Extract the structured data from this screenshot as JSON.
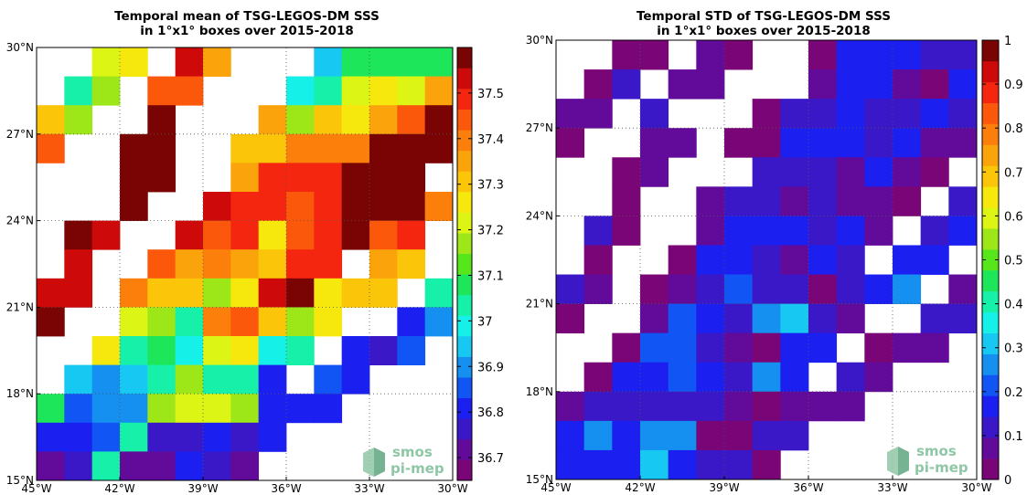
{
  "chart_data": [
    {
      "type": "heatmap",
      "title": "Temporal mean of TSG-LEGOS-DM SSS",
      "subtitle": "in 1°x1° boxes over 2015-2018",
      "xlabel": "",
      "ylabel": "",
      "xlim": [
        -45,
        -30
      ],
      "ylim": [
        15,
        30
      ],
      "xticks": [
        -45,
        -42,
        -39,
        -36,
        -33,
        -30
      ],
      "xtick_labels": [
        "45°W",
        "42°W",
        "39°W",
        "36°W",
        "33°W",
        "30°W"
      ],
      "yticks": [
        15,
        18,
        21,
        24,
        27,
        30
      ],
      "ytick_labels": [
        "15°N",
        "18°N",
        "21°N",
        "24°N",
        "27°N",
        "30°N"
      ],
      "grid": true,
      "colorbar": {
        "min": 36.65,
        "max": 37.6,
        "ticks": [
          36.7,
          36.8,
          36.9,
          37,
          37.1,
          37.2,
          37.3,
          37.4,
          37.5
        ],
        "tick_labels": [
          "36.7",
          "36.8",
          "36.9",
          "37",
          "37.1",
          "37.2",
          "37.3",
          "37.4",
          "37.5"
        ]
      },
      "colormap": [
        "#7a0577",
        "#620a9a",
        "#3a18c8",
        "#1b1ff0",
        "#1155f5",
        "#1590f0",
        "#16c8f2",
        "#15f0e8",
        "#17f0a8",
        "#1ee65a",
        "#57e61a",
        "#9de618",
        "#dcf515",
        "#f6e80c",
        "#fbc50a",
        "#fba30a",
        "#fb7f0a",
        "#fb580c",
        "#f4260f",
        "#ce0909",
        "#7a0303"
      ],
      "logo": {
        "line1": "smos",
        "line2": "pi-mep"
      },
      "rows": [
        {
          "lat": 29.5,
          "v": [
            null,
            null,
            37.2,
            37.25,
            null,
            37.55,
            37.35,
            null,
            null,
            null,
            36.95,
            37.1,
            37.1,
            37.1,
            37.1
          ]
        },
        {
          "lat": 28.5,
          "v": [
            null,
            37.05,
            37.15,
            null,
            37.45,
            37.45,
            null,
            null,
            null,
            37.0,
            37.05,
            37.2,
            37.25,
            37.2,
            37.35
          ]
        },
        {
          "lat": 27.5,
          "v": [
            37.3,
            37.15,
            null,
            null,
            37.6,
            null,
            null,
            null,
            37.35,
            37.15,
            37.3,
            37.25,
            37.35,
            37.45,
            37.6
          ]
        },
        {
          "lat": 26.5,
          "v": [
            37.45,
            null,
            null,
            37.6,
            37.6,
            null,
            null,
            37.3,
            37.3,
            37.4,
            37.4,
            37.4,
            37.6,
            37.6,
            37.6
          ]
        },
        {
          "lat": 25.5,
          "v": [
            null,
            null,
            null,
            37.6,
            37.6,
            null,
            null,
            37.35,
            37.5,
            37.5,
            37.5,
            37.6,
            37.6,
            37.6,
            null
          ]
        },
        {
          "lat": 24.5,
          "v": [
            null,
            null,
            null,
            37.6,
            null,
            null,
            37.55,
            37.5,
            37.5,
            37.45,
            37.5,
            37.6,
            37.6,
            37.6,
            37.4
          ]
        },
        {
          "lat": 23.5,
          "v": [
            null,
            37.6,
            37.55,
            null,
            null,
            37.55,
            37.45,
            37.5,
            37.25,
            37.45,
            37.5,
            37.6,
            37.45,
            37.5,
            null
          ]
        },
        {
          "lat": 22.5,
          "v": [
            null,
            37.55,
            null,
            null,
            37.45,
            37.35,
            37.4,
            37.35,
            37.3,
            37.5,
            37.5,
            null,
            37.35,
            37.3,
            null
          ]
        },
        {
          "lat": 21.5,
          "v": [
            37.55,
            37.55,
            null,
            37.4,
            37.3,
            37.3,
            37.15,
            37.25,
            37.55,
            37.6,
            37.25,
            37.3,
            37.3,
            null,
            37.05
          ]
        },
        {
          "lat": 20.5,
          "v": [
            37.6,
            null,
            null,
            37.2,
            37.15,
            37.05,
            37.4,
            37.45,
            37.3,
            37.15,
            37.25,
            null,
            null,
            36.8,
            36.9
          ]
        },
        {
          "lat": 19.5,
          "v": [
            null,
            null,
            37.25,
            37.05,
            37.1,
            37.0,
            37.2,
            37.25,
            37.0,
            37.05,
            null,
            36.8,
            36.75,
            36.85,
            null
          ]
        },
        {
          "lat": 18.5,
          "v": [
            null,
            36.95,
            36.9,
            36.95,
            37.05,
            37.15,
            37.05,
            37.05,
            36.8,
            null,
            36.85,
            36.8,
            null,
            null,
            null
          ]
        },
        {
          "lat": 17.5,
          "v": [
            37.1,
            36.85,
            36.9,
            36.9,
            37.15,
            37.2,
            37.2,
            37.15,
            36.8,
            36.8,
            36.8,
            null,
            null,
            null,
            null
          ]
        },
        {
          "lat": 16.5,
          "v": [
            36.8,
            36.8,
            36.85,
            37.05,
            36.75,
            36.75,
            36.8,
            36.75,
            36.8,
            null,
            null,
            null,
            null,
            null,
            null
          ]
        },
        {
          "lat": 15.5,
          "v": [
            36.7,
            36.75,
            37.05,
            36.7,
            36.7,
            36.8,
            36.75,
            36.7,
            null,
            null,
            null,
            null,
            null,
            null,
            null
          ]
        }
      ]
    },
    {
      "type": "heatmap",
      "title": "Temporal STD of TSG-LEGOS-DM SSS",
      "subtitle": "in 1°x1° boxes over 2015-2018",
      "xlabel": "",
      "ylabel": "",
      "xlim": [
        -45,
        -30
      ],
      "ylim": [
        15,
        30
      ],
      "xticks": [
        -45,
        -42,
        -39,
        -36,
        -33,
        -30
      ],
      "xtick_labels": [
        "45°W",
        "42°W",
        "39°W",
        "36°W",
        "33°W",
        "30°W"
      ],
      "yticks": [
        15,
        18,
        21,
        24,
        27,
        30
      ],
      "ytick_labels": [
        "15°N",
        "18°N",
        "21°N",
        "24°N",
        "27°N",
        "30°N"
      ],
      "grid": true,
      "colorbar": {
        "min": 0,
        "max": 1,
        "ticks": [
          0,
          0.1,
          0.2,
          0.3,
          0.4,
          0.5,
          0.6,
          0.7,
          0.8,
          0.9,
          1
        ],
        "tick_labels": [
          "0",
          "0.1",
          "0.2",
          "0.3",
          "0.4",
          "0.5",
          "0.6",
          "0.7",
          "0.8",
          "0.9",
          "1"
        ]
      },
      "colormap": [
        "#7a0577",
        "#620a9a",
        "#3a18c8",
        "#1b1ff0",
        "#1155f5",
        "#1590f0",
        "#16c8f2",
        "#15f0e8",
        "#17f0a8",
        "#1ee65a",
        "#57e61a",
        "#9de618",
        "#dcf515",
        "#f6e80c",
        "#fbc50a",
        "#fba30a",
        "#fb7f0a",
        "#fb580c",
        "#f4260f",
        "#ce0909",
        "#7a0303"
      ],
      "logo": {
        "line1": "smos",
        "line2": "pi-mep"
      },
      "rows": [
        {
          "lat": 29.5,
          "v": [
            null,
            null,
            0.03,
            0.03,
            null,
            0.08,
            0.04,
            null,
            null,
            0.03,
            0.15,
            0.15,
            0.17,
            0.12,
            0.1
          ]
        },
        {
          "lat": 28.5,
          "v": [
            null,
            0.03,
            0.1,
            null,
            0.05,
            0.05,
            null,
            null,
            null,
            0.08,
            0.16,
            0.16,
            0.08,
            0.04,
            0.16
          ]
        },
        {
          "lat": 27.5,
          "v": [
            0.08,
            0.08,
            null,
            0.13,
            null,
            null,
            null,
            0.03,
            0.1,
            0.12,
            0.15,
            0.1,
            0.1,
            0.17,
            0.1
          ]
        },
        {
          "lat": 26.5,
          "v": [
            0.03,
            null,
            null,
            0.05,
            0.05,
            null,
            0.04,
            0.04,
            0.16,
            0.16,
            0.16,
            0.12,
            0.16,
            0.08,
            0.08
          ]
        },
        {
          "lat": 25.5,
          "v": [
            null,
            null,
            0.04,
            0.09,
            null,
            null,
            null,
            0.1,
            0.13,
            0.13,
            0.05,
            0.17,
            0.08,
            0.03,
            null
          ]
        },
        {
          "lat": 24.5,
          "v": [
            null,
            null,
            0.03,
            null,
            null,
            0.08,
            0.12,
            0.12,
            0.07,
            0.1,
            0.08,
            0.05,
            0.03,
            null,
            0.12
          ]
        },
        {
          "lat": 23.5,
          "v": [
            null,
            0.1,
            0.03,
            null,
            null,
            0.05,
            0.16,
            0.16,
            0.16,
            0.12,
            0.16,
            0.05,
            null,
            0.1,
            0.16
          ]
        },
        {
          "lat": 22.5,
          "v": [
            null,
            0.03,
            null,
            null,
            0.03,
            0.16,
            0.16,
            0.1,
            0.05,
            0.16,
            0.12,
            null,
            0.16,
            0.16,
            null
          ]
        },
        {
          "lat": 21.5,
          "v": [
            0.13,
            0.05,
            null,
            0.04,
            0.08,
            0.13,
            0.2,
            0.12,
            0.12,
            0.03,
            0.1,
            0.16,
            0.25,
            null,
            0.08
          ]
        },
        {
          "lat": 20.5,
          "v": [
            0.04,
            null,
            null,
            0.07,
            0.2,
            0.17,
            0.12,
            0.25,
            0.33,
            0.12,
            0.09,
            null,
            null,
            0.12,
            0.12
          ]
        },
        {
          "lat": 19.5,
          "v": [
            null,
            null,
            0.03,
            0.2,
            0.2,
            0.12,
            0.08,
            0.03,
            0.17,
            0.17,
            null,
            0.04,
            0.07,
            0.07,
            null
          ]
        },
        {
          "lat": 18.5,
          "v": [
            null,
            0.03,
            0.16,
            0.16,
            0.2,
            0.16,
            0.1,
            0.27,
            0.16,
            null,
            0.1,
            0.08,
            null,
            null,
            null
          ]
        },
        {
          "lat": 17.5,
          "v": [
            0.05,
            0.13,
            0.13,
            0.13,
            0.1,
            0.1,
            0.05,
            0.04,
            0.08,
            0.08,
            0.08,
            null,
            null,
            null,
            null
          ]
        },
        {
          "lat": 16.5,
          "v": [
            0.16,
            0.25,
            0.16,
            0.25,
            0.25,
            0.04,
            0.03,
            0.12,
            0.12,
            null,
            null,
            null,
            null,
            null,
            null
          ]
        },
        {
          "lat": 15.5,
          "v": [
            0.16,
            0.16,
            0.16,
            0.32,
            0.16,
            0.12,
            0.1,
            0.03,
            null,
            null,
            null,
            null,
            null,
            null,
            null
          ]
        }
      ]
    }
  ]
}
